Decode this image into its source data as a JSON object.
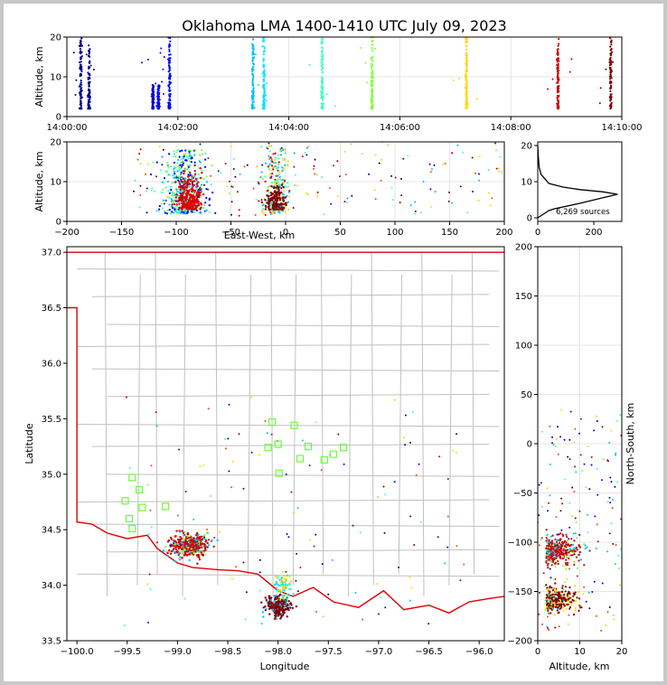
{
  "title": "Oklahoma LMA 1400-1410 UTC July 09, 2023",
  "colors": {
    "frame_border": "#c8c8c8",
    "state_border": "#e00000",
    "county_lines": "#c0c0c0",
    "stations": "#66ff33",
    "time_scale": [
      "#00008b",
      "#0000ff",
      "#00bfff",
      "#40ffbf",
      "#80ff40",
      "#ffd700",
      "#ff4500",
      "#cc0000",
      "#800000"
    ]
  },
  "chart_data": [
    {
      "id": "time_height",
      "type": "scatter",
      "ylabel": "Altitude, km",
      "ylim": [
        0,
        20
      ],
      "yticks": [
        "0",
        "10",
        "20"
      ],
      "xticks": [
        "14:00:00",
        "14:02:00",
        "14:04:00",
        "14:06:00",
        "14:08:00",
        "14:10:00"
      ],
      "xlim_minutes": [
        0,
        10
      ],
      "grid": true,
      "columns": [
        {
          "t": 0.25,
          "z": [
            2,
            20
          ],
          "color": "#00008b"
        },
        {
          "t": 0.4,
          "z": [
            2,
            18
          ],
          "color": "#00008b"
        },
        {
          "t": 1.55,
          "z": [
            2,
            8
          ],
          "color": "#0000cd"
        },
        {
          "t": 1.65,
          "z": [
            2,
            8
          ],
          "color": "#0000ff"
        },
        {
          "t": 1.85,
          "z": [
            2,
            20
          ],
          "color": "#0000ff"
        },
        {
          "t": 3.35,
          "z": [
            2,
            20
          ],
          "color": "#00bfff"
        },
        {
          "t": 3.55,
          "z": [
            2,
            20
          ],
          "color": "#00e5ff"
        },
        {
          "t": 4.6,
          "z": [
            2,
            20
          ],
          "color": "#40ffbf"
        },
        {
          "t": 5.5,
          "z": [
            2,
            20
          ],
          "color": "#80ff40"
        },
        {
          "t": 7.2,
          "z": [
            2,
            20
          ],
          "color": "#ffd700"
        },
        {
          "t": 8.85,
          "z": [
            2,
            20
          ],
          "color": "#cc0000"
        },
        {
          "t": 9.8,
          "z": [
            2,
            20
          ],
          "color": "#800000"
        }
      ]
    },
    {
      "id": "ew_height",
      "type": "scatter",
      "xlabel": "East-West, km",
      "ylabel": "Altitude, km",
      "xlim": [
        -200,
        200
      ],
      "ylim": [
        0,
        20
      ],
      "xticks": [
        "−200",
        "−150",
        "−100",
        "−50",
        "0",
        "50",
        "100",
        "150",
        "200"
      ],
      "yticks": [
        "0",
        "10",
        "20"
      ],
      "grid": true
    },
    {
      "id": "height_histogram",
      "type": "line",
      "xlim": [
        0,
        300
      ],
      "ylim": [
        0,
        20
      ],
      "xticks": [
        "0",
        "200"
      ],
      "yticks": [
        "0",
        "10",
        "20"
      ],
      "annotation": "6,269 sources",
      "x": [
        0,
        20,
        40,
        60,
        90,
        150,
        230,
        285,
        230,
        150,
        90,
        40,
        12,
        5,
        2,
        0
      ],
      "y": [
        0,
        1,
        2,
        2.5,
        3,
        4,
        5.5,
        6.5,
        7.2,
        7.8,
        8.5,
        9.5,
        12,
        14,
        17,
        20
      ]
    },
    {
      "id": "plan_view",
      "type": "scatter",
      "xlabel": "Longitude",
      "ylabel": "Latitude",
      "xlim": [
        -100.1,
        -95.75
      ],
      "ylim": [
        33.5,
        37.05
      ],
      "xticks": [
        "−100.0",
        "−99.5",
        "−99.0",
        "−98.5",
        "−98.0",
        "−97.5",
        "−97.0",
        "−96.5",
        "−96.0"
      ],
      "yticks": [
        "33.5",
        "34.0",
        "34.5",
        "35.0",
        "35.5",
        "36.0",
        "36.5",
        "37.0"
      ],
      "clusters": [
        {
          "lon": -98.95,
          "lat": 34.35,
          "color": "#cc0000"
        },
        {
          "lon": -97.95,
          "lat": 33.85,
          "color": "#800000"
        }
      ],
      "stations": [
        {
          "lon": -99.52,
          "lat": 34.76
        },
        {
          "lon": -99.45,
          "lat": 34.97
        },
        {
          "lon": -99.38,
          "lat": 34.86
        },
        {
          "lon": -99.35,
          "lat": 34.7
        },
        {
          "lon": -99.48,
          "lat": 34.6
        },
        {
          "lon": -99.45,
          "lat": 34.51
        },
        {
          "lon": -99.12,
          "lat": 34.71
        },
        {
          "lon": -98.06,
          "lat": 35.47
        },
        {
          "lon": -98.0,
          "lat": 35.27
        },
        {
          "lon": -98.1,
          "lat": 35.24
        },
        {
          "lon": -97.99,
          "lat": 35.01
        },
        {
          "lon": -97.84,
          "lat": 35.44
        },
        {
          "lon": -97.78,
          "lat": 35.14
        },
        {
          "lon": -97.7,
          "lat": 35.25
        },
        {
          "lon": -97.54,
          "lat": 35.13
        },
        {
          "lon": -97.45,
          "lat": 35.18
        },
        {
          "lon": -97.35,
          "lat": 35.24
        }
      ]
    },
    {
      "id": "ns_height",
      "type": "scatter",
      "xlabel": "Altitude, km",
      "ylabel": "North-South, km",
      "xlim": [
        0,
        20
      ],
      "ylim": [
        -200,
        200
      ],
      "xticks": [
        "0",
        "10",
        "20"
      ],
      "yticks": [
        "−200",
        "−150",
        "−100",
        "−50",
        "0",
        "50",
        "100",
        "150",
        "200"
      ],
      "grid": true
    }
  ]
}
